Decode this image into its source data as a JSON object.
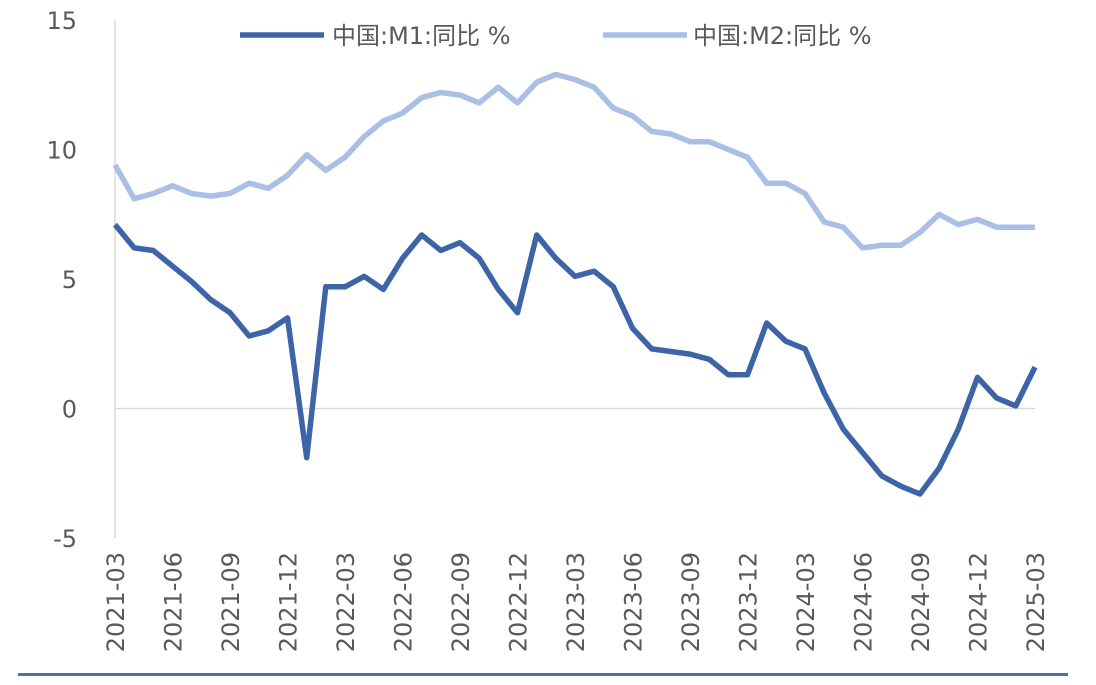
{
  "chart_data": {
    "type": "line",
    "title": "",
    "xlabel": "",
    "ylabel": "",
    "ylim": [
      -5,
      15
    ],
    "yticks": [
      -5,
      0,
      5,
      10,
      15
    ],
    "ytick_labels": [
      "-5",
      "0",
      "5",
      "10",
      "15"
    ],
    "grid": false,
    "legend_position": "top",
    "x": [
      "2021-03",
      "2021-04",
      "2021-05",
      "2021-06",
      "2021-07",
      "2021-08",
      "2021-09",
      "2021-10",
      "2021-11",
      "2021-12",
      "2022-01",
      "2022-02",
      "2022-03",
      "2022-04",
      "2022-05",
      "2022-06",
      "2022-07",
      "2022-08",
      "2022-09",
      "2022-10",
      "2022-11",
      "2022-12",
      "2023-01",
      "2023-02",
      "2023-03",
      "2023-04",
      "2023-05",
      "2023-06",
      "2023-07",
      "2023-08",
      "2023-09",
      "2023-10",
      "2023-11",
      "2023-12",
      "2024-01",
      "2024-02",
      "2024-03",
      "2024-04",
      "2024-05",
      "2024-06",
      "2024-07",
      "2024-08",
      "2024-09",
      "2024-10",
      "2024-11",
      "2024-12",
      "2025-01",
      "2025-02",
      "2025-03"
    ],
    "xtick_labels": [
      "2021-03",
      "2021-06",
      "2021-09",
      "2021-12",
      "2022-03",
      "2022-06",
      "2022-09",
      "2022-12",
      "2023-03",
      "2023-06",
      "2023-09",
      "2023-12",
      "2024-03",
      "2024-06",
      "2024-09",
      "2024-12",
      "2025-03"
    ],
    "series": [
      {
        "name": "中国:M1:同比 %",
        "color": "#3e64a8",
        "values": [
          7.1,
          6.2,
          6.1,
          5.5,
          4.9,
          4.2,
          3.7,
          2.8,
          3.0,
          3.5,
          -1.9,
          4.7,
          4.7,
          5.1,
          4.6,
          5.8,
          6.7,
          6.1,
          6.4,
          5.8,
          4.6,
          3.7,
          6.7,
          5.8,
          5.1,
          5.3,
          4.7,
          3.1,
          2.3,
          2.2,
          2.1,
          1.9,
          1.3,
          1.3,
          3.3,
          2.6,
          2.3,
          0.6,
          -0.8,
          -1.7,
          -2.6,
          -3.0,
          -3.3,
          -2.3,
          -0.8,
          1.2,
          0.4,
          0.1,
          1.6
        ]
      },
      {
        "name": "中国:M2:同比 %",
        "color": "#a9bfe6",
        "values": [
          9.4,
          8.1,
          8.3,
          8.6,
          8.3,
          8.2,
          8.3,
          8.7,
          8.5,
          9.0,
          9.8,
          9.2,
          9.7,
          10.5,
          11.1,
          11.4,
          12.0,
          12.2,
          12.1,
          11.8,
          12.4,
          11.8,
          12.6,
          12.9,
          12.7,
          12.4,
          11.6,
          11.3,
          10.7,
          10.6,
          10.3,
          10.3,
          10.0,
          9.7,
          8.7,
          8.7,
          8.3,
          7.2,
          7.0,
          6.2,
          6.3,
          6.3,
          6.8,
          7.5,
          7.1,
          7.3,
          7.0,
          7.0,
          7.0
        ]
      }
    ]
  }
}
